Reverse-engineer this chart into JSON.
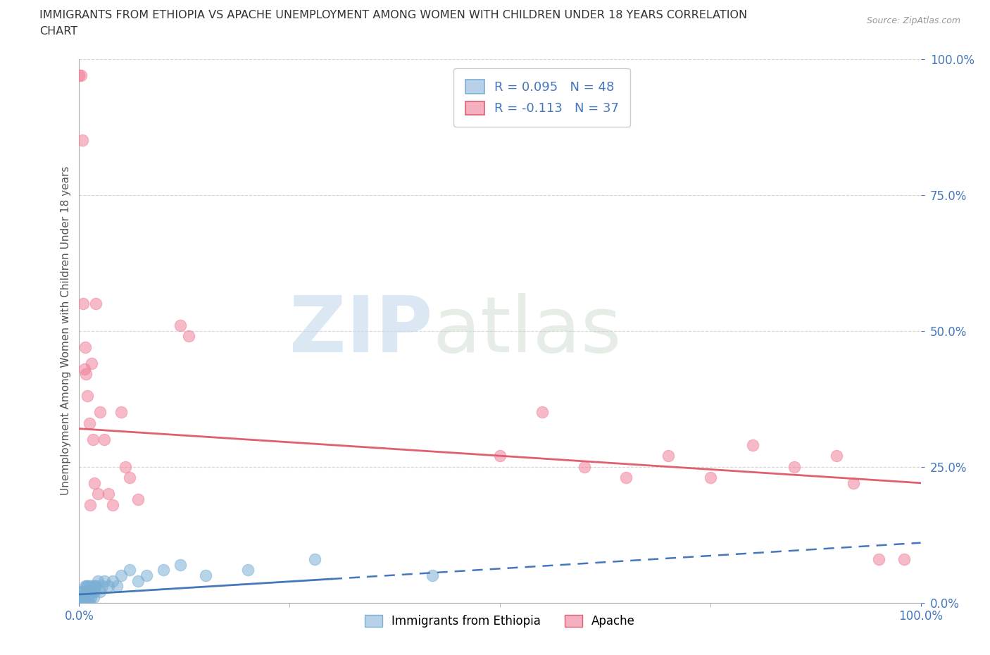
{
  "title_line1": "IMMIGRANTS FROM ETHIOPIA VS APACHE UNEMPLOYMENT AMONG WOMEN WITH CHILDREN UNDER 18 YEARS CORRELATION",
  "title_line2": "CHART",
  "source": "Source: ZipAtlas.com",
  "ylabel": "Unemployment Among Women with Children Under 18 years",
  "xlim": [
    0.0,
    1.0
  ],
  "ylim": [
    0.0,
    1.0
  ],
  "yticks": [
    0.0,
    0.25,
    0.5,
    0.75,
    1.0
  ],
  "ytick_labels": [
    "0.0%",
    "25.0%",
    "50.0%",
    "75.0%",
    "100.0%"
  ],
  "R_ethiopia": 0.095,
  "N_ethiopia": 48,
  "R_apache": -0.113,
  "N_apache": 37,
  "watermark_zip": "ZIP",
  "watermark_atlas": "atlas",
  "ethiopia_color": "#7bafd4",
  "apache_color": "#f08099",
  "trend_ethiopia_color": "#4477bb",
  "trend_apache_color": "#e06070",
  "background_color": "#ffffff",
  "grid_color": "#cccccc",
  "title_color": "#333333",
  "axis_label_color": "#4477bb",
  "legend_eth_face": "#b8d0e8",
  "legend_eth_edge": "#7bafd4",
  "legend_apa_face": "#f4b0c0",
  "legend_apa_edge": "#e06070",
  "ethiopia_x": [
    0.001,
    0.001,
    0.002,
    0.002,
    0.003,
    0.003,
    0.004,
    0.004,
    0.005,
    0.005,
    0.006,
    0.006,
    0.007,
    0.007,
    0.008,
    0.008,
    0.009,
    0.009,
    0.01,
    0.01,
    0.011,
    0.012,
    0.012,
    0.013,
    0.014,
    0.015,
    0.016,
    0.017,
    0.018,
    0.019,
    0.02,
    0.022,
    0.025,
    0.027,
    0.03,
    0.035,
    0.04,
    0.045,
    0.05,
    0.06,
    0.07,
    0.08,
    0.1,
    0.12,
    0.15,
    0.2,
    0.28,
    0.42
  ],
  "ethiopia_y": [
    0.0,
    0.01,
    0.0,
    0.01,
    0.0,
    0.02,
    0.01,
    0.0,
    0.02,
    0.01,
    0.0,
    0.01,
    0.03,
    0.0,
    0.02,
    0.01,
    0.03,
    0.0,
    0.02,
    0.03,
    0.01,
    0.02,
    0.0,
    0.03,
    0.01,
    0.02,
    0.03,
    0.01,
    0.02,
    0.03,
    0.03,
    0.04,
    0.02,
    0.03,
    0.04,
    0.03,
    0.04,
    0.03,
    0.05,
    0.06,
    0.04,
    0.05,
    0.06,
    0.07,
    0.05,
    0.06,
    0.08,
    0.05
  ],
  "apache_x": [
    0.0,
    0.002,
    0.004,
    0.005,
    0.006,
    0.007,
    0.008,
    0.01,
    0.012,
    0.013,
    0.015,
    0.016,
    0.018,
    0.02,
    0.022,
    0.025,
    0.03,
    0.035,
    0.04,
    0.05,
    0.055,
    0.06,
    0.07,
    0.12,
    0.13,
    0.5,
    0.55,
    0.6,
    0.65,
    0.7,
    0.75,
    0.8,
    0.85,
    0.9,
    0.92,
    0.95,
    0.98
  ],
  "apache_y": [
    0.97,
    0.97,
    0.85,
    0.55,
    0.43,
    0.47,
    0.42,
    0.38,
    0.33,
    0.18,
    0.44,
    0.3,
    0.22,
    0.55,
    0.2,
    0.35,
    0.3,
    0.2,
    0.18,
    0.35,
    0.25,
    0.23,
    0.19,
    0.51,
    0.49,
    0.27,
    0.35,
    0.25,
    0.23,
    0.27,
    0.23,
    0.29,
    0.25,
    0.27,
    0.22,
    0.08,
    0.08
  ],
  "trend_eth_x0": 0.0,
  "trend_eth_x1": 1.0,
  "trend_eth_y0": 0.015,
  "trend_eth_y1": 0.11,
  "trend_eth_solid_end": 0.3,
  "trend_apa_x0": 0.0,
  "trend_apa_x1": 1.0,
  "trend_apa_y0": 0.32,
  "trend_apa_y1": 0.22
}
